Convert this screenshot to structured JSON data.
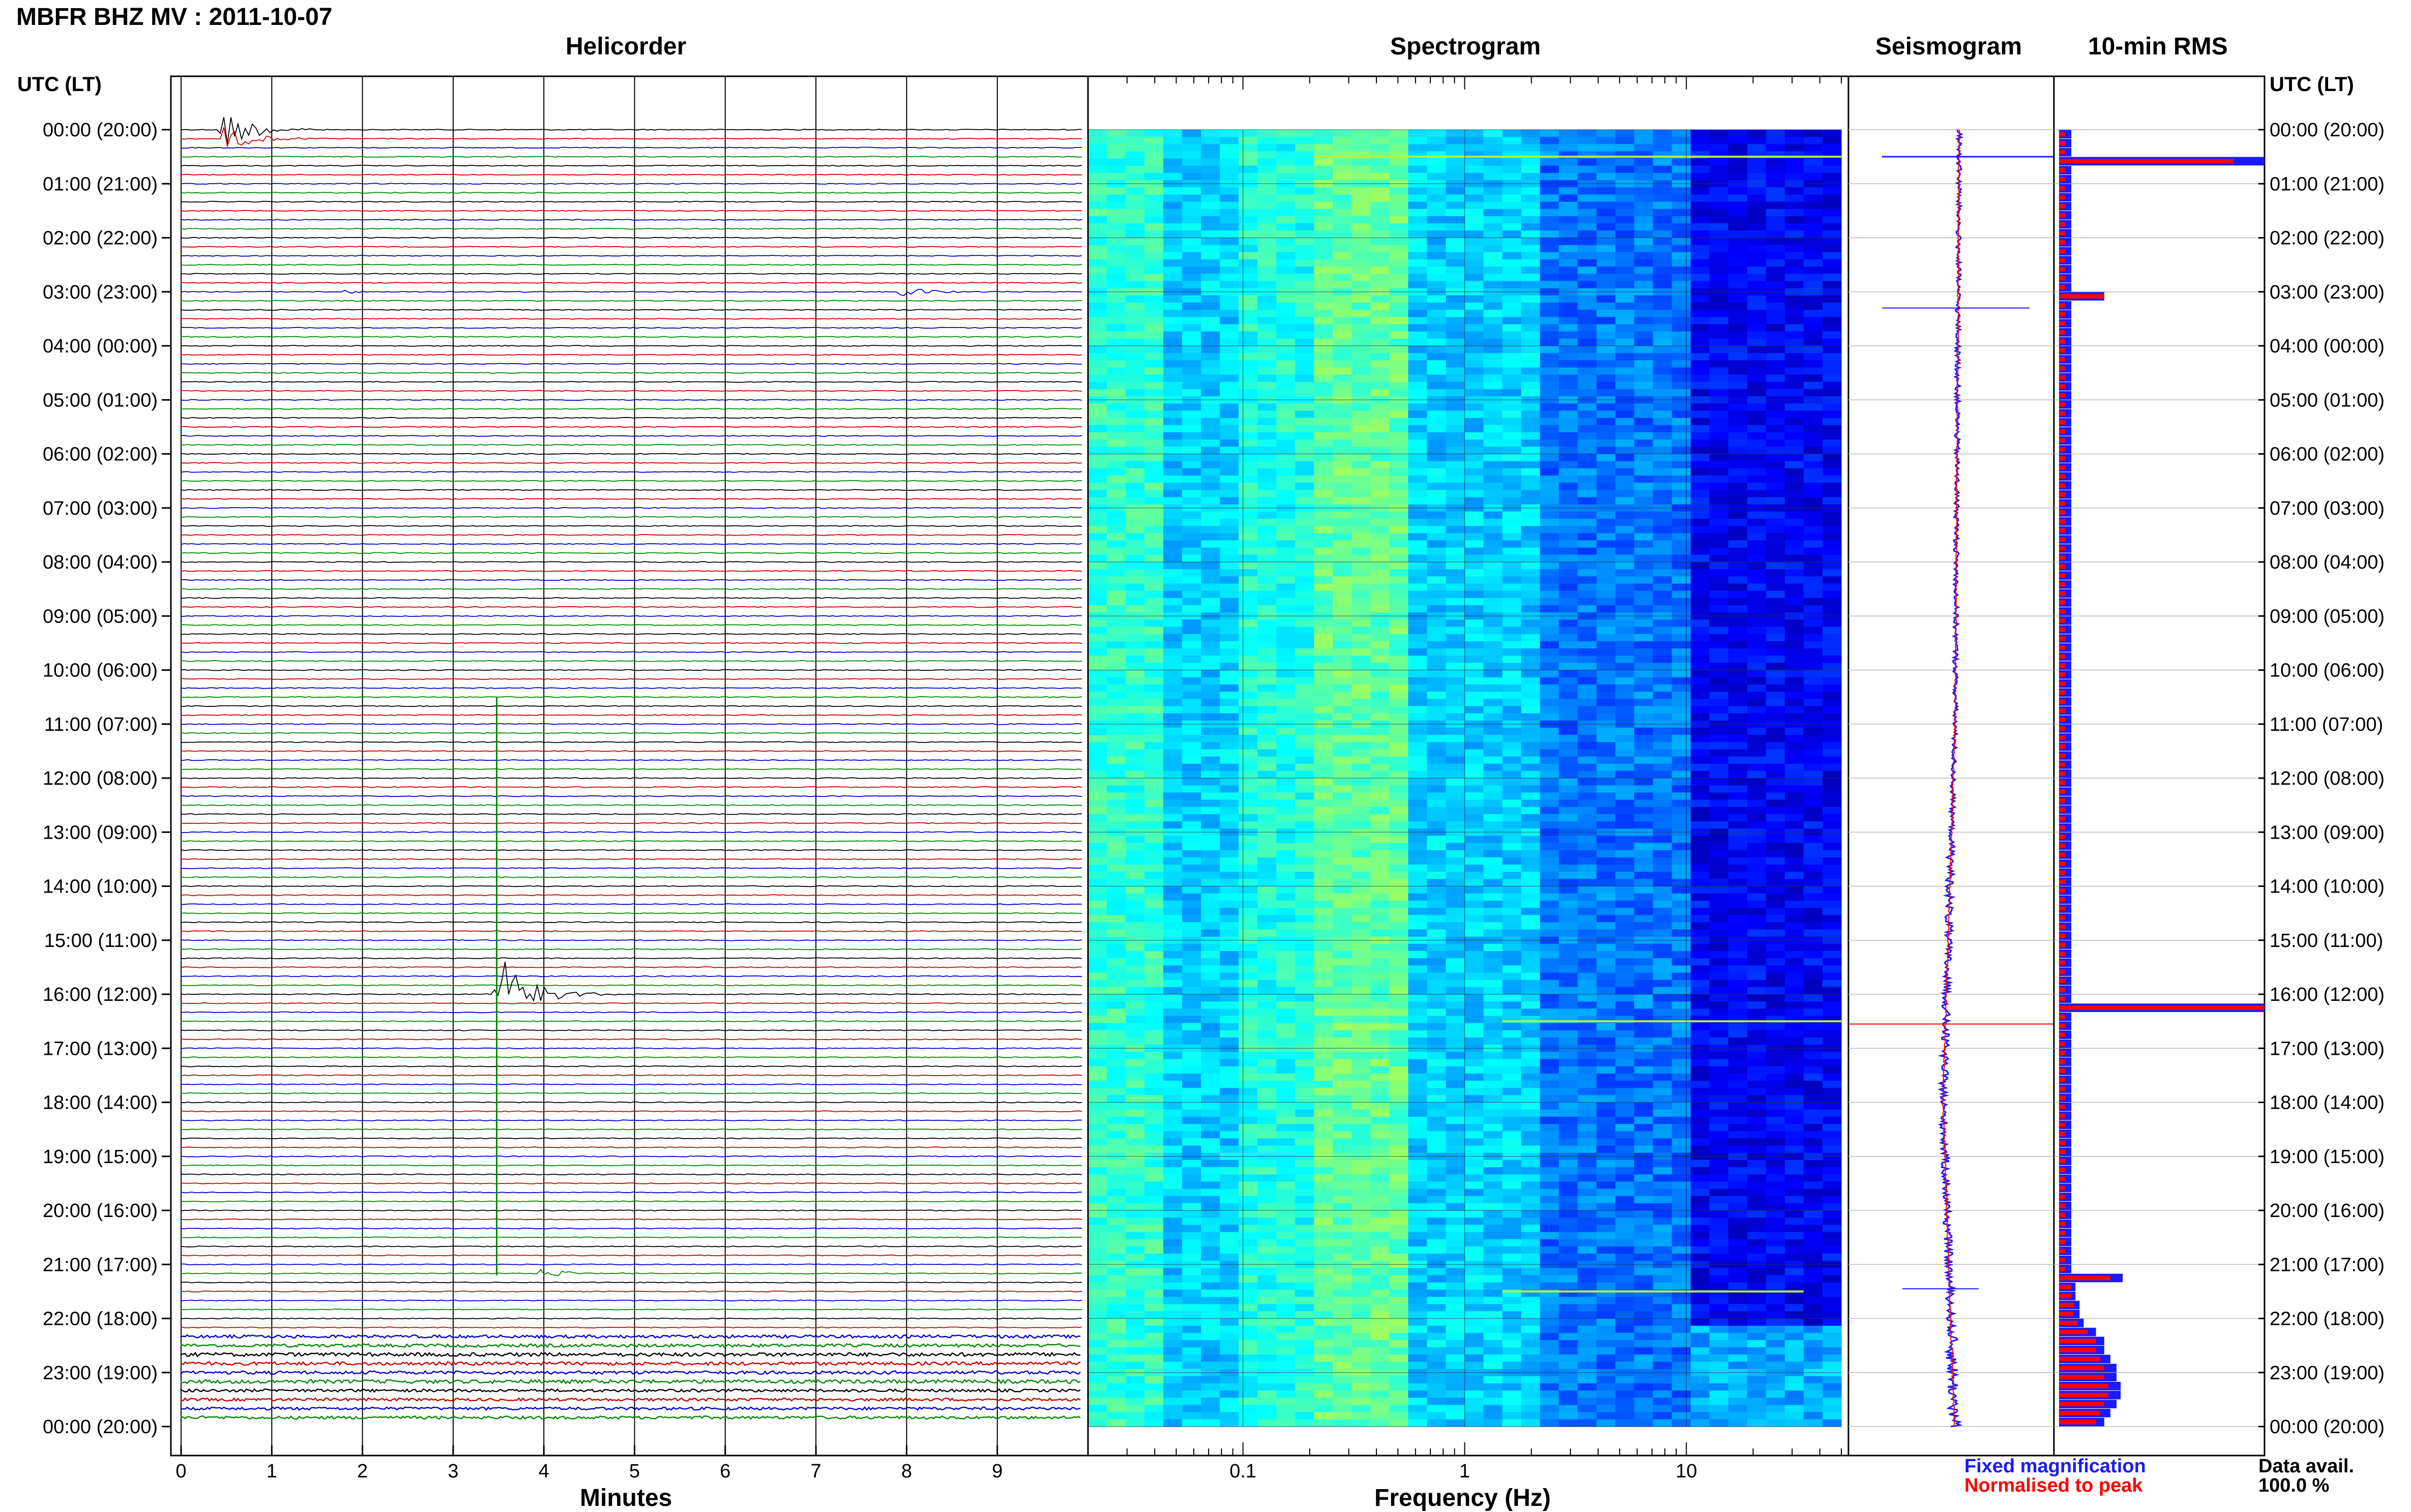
{
  "title": "MBFR BHZ MV : 2011-10-07",
  "panels": {
    "helicorder": "Helicorder",
    "spectrogram": "Spectrogram",
    "seismogram": "Seismogram",
    "rms": "10-min RMS"
  },
  "time_axis_label": "UTC (LT)",
  "legend": {
    "fixed": "Fixed magnification",
    "normalised": "Normalised to peak"
  },
  "data_avail": {
    "label": "Data avail.",
    "value": "100.0 %"
  },
  "colors": {
    "trace_cycle": [
      "#000000",
      "#cc0000",
      "#0000cc",
      "#008800"
    ],
    "fixed": "#1a1aff",
    "normalised": "#ff0000"
  },
  "chart_data": [
    {
      "type": "line",
      "title": "Helicorder",
      "xlabel": "Minutes",
      "x_ticks": [
        "0",
        "1",
        "2",
        "3",
        "4",
        "5",
        "6",
        "7",
        "8",
        "9"
      ],
      "xlim": [
        0,
        10
      ],
      "rows_per_hour": 6,
      "hours": 24,
      "y_tick_labels": [
        "00:00 (20:00)",
        "01:00 (21:00)",
        "02:00 (22:00)",
        "03:00 (23:00)",
        "04:00 (00:00)",
        "05:00 (01:00)",
        "06:00 (02:00)",
        "07:00 (03:00)",
        "08:00 (04:00)",
        "09:00 (05:00)",
        "10:00 (06:00)",
        "11:00 (07:00)",
        "12:00 (08:00)",
        "13:00 (09:00)",
        "14:00 (10:00)",
        "15:00 (11:00)",
        "16:00 (12:00)",
        "17:00 (13:00)",
        "18:00 (14:00)",
        "19:00 (15:00)",
        "20:00 (16:00)",
        "21:00 (17:00)",
        "22:00 (18:00)",
        "23:00 (19:00)",
        "00:00 (20:00)"
      ],
      "events": [
        {
          "row": 0,
          "minute": 0.4,
          "amplitude": 10
        },
        {
          "row": 1,
          "minute": 0.45,
          "amplitude": 5
        },
        {
          "row": 18,
          "minute": 1.8,
          "amplitude": 0.8
        },
        {
          "row": 18,
          "minute": 7.9,
          "amplitude": 2.5
        },
        {
          "row": 96,
          "minute": 3.45,
          "amplitude": 20
        },
        {
          "row": 127,
          "minute": 3.95,
          "amplitude": 2.2
        }
      ],
      "noisy_from_row": 134
    },
    {
      "type": "heatmap",
      "title": "Spectrogram",
      "xlabel": "Frequency (Hz)",
      "x_scale": "log",
      "x_ticks": [
        "0.1",
        "1",
        "10"
      ],
      "xlim": [
        0.02,
        50
      ],
      "colormap": "jet"
    },
    {
      "type": "line",
      "title": "Seismogram",
      "series": [
        {
          "name": "Fixed magnification",
          "color": "#1a1aff"
        },
        {
          "name": "Normalised to peak",
          "color": "#ff0000"
        }
      ]
    },
    {
      "type": "bar",
      "title": "10-min RMS",
      "orientation": "horizontal",
      "n_bins": 144,
      "series": [
        {
          "name": "Fixed magnification",
          "color": "#1a1aff",
          "values": [
            0.06,
            0.06,
            0.06,
            1.0,
            0.06,
            0.06,
            0.06,
            0.06,
            0.06,
            0.06,
            0.06,
            0.06,
            0.06,
            0.06,
            0.06,
            0.06,
            0.06,
            0.06,
            0.22,
            0.06,
            0.06,
            0.06,
            0.06,
            0.06,
            0.06,
            0.06,
            0.06,
            0.06,
            0.06,
            0.06,
            0.06,
            0.06,
            0.06,
            0.06,
            0.06,
            0.06,
            0.06,
            0.06,
            0.06,
            0.06,
            0.06,
            0.06,
            0.06,
            0.06,
            0.06,
            0.06,
            0.06,
            0.06,
            0.06,
            0.06,
            0.06,
            0.06,
            0.06,
            0.06,
            0.06,
            0.06,
            0.06,
            0.06,
            0.06,
            0.06,
            0.06,
            0.06,
            0.06,
            0.06,
            0.06,
            0.06,
            0.06,
            0.06,
            0.06,
            0.06,
            0.06,
            0.06,
            0.06,
            0.06,
            0.06,
            0.06,
            0.06,
            0.06,
            0.06,
            0.06,
            0.06,
            0.06,
            0.06,
            0.06,
            0.06,
            0.06,
            0.06,
            0.06,
            0.06,
            0.06,
            0.06,
            0.06,
            0.06,
            0.06,
            0.06,
            0.06,
            0.06,
            1.0,
            0.06,
            0.06,
            0.06,
            0.06,
            0.06,
            0.06,
            0.06,
            0.06,
            0.06,
            0.06,
            0.06,
            0.06,
            0.06,
            0.06,
            0.06,
            0.06,
            0.06,
            0.06,
            0.06,
            0.06,
            0.06,
            0.06,
            0.06,
            0.06,
            0.06,
            0.06,
            0.06,
            0.06,
            0.06,
            0.31,
            0.08,
            0.08,
            0.1,
            0.1,
            0.12,
            0.18,
            0.22,
            0.22,
            0.25,
            0.28,
            0.28,
            0.3,
            0.3,
            0.28,
            0.25,
            0.22,
            0.18,
            0.15
          ]
        },
        {
          "name": "Normalised to peak",
          "color": "#ff0000",
          "values": [
            0.03,
            0.03,
            0.03,
            0.85,
            0.03,
            0.03,
            0.03,
            0.03,
            0.03,
            0.03,
            0.03,
            0.03,
            0.03,
            0.03,
            0.03,
            0.03,
            0.03,
            0.03,
            0.22,
            0.03,
            0.03,
            0.03,
            0.03,
            0.03,
            0.03,
            0.03,
            0.03,
            0.03,
            0.03,
            0.03,
            0.03,
            0.03,
            0.03,
            0.03,
            0.03,
            0.03,
            0.03,
            0.03,
            0.03,
            0.03,
            0.03,
            0.03,
            0.03,
            0.03,
            0.03,
            0.03,
            0.03,
            0.03,
            0.03,
            0.03,
            0.03,
            0.03,
            0.03,
            0.03,
            0.03,
            0.03,
            0.03,
            0.03,
            0.03,
            0.03,
            0.03,
            0.03,
            0.03,
            0.03,
            0.03,
            0.03,
            0.03,
            0.03,
            0.03,
            0.03,
            0.03,
            0.03,
            0.03,
            0.03,
            0.03,
            0.03,
            0.03,
            0.03,
            0.03,
            0.03,
            0.03,
            0.03,
            0.03,
            0.03,
            0.03,
            0.03,
            0.03,
            0.03,
            0.03,
            0.03,
            0.03,
            0.03,
            0.03,
            0.03,
            0.03,
            0.03,
            0.03,
            1.0,
            0.03,
            0.03,
            0.03,
            0.03,
            0.03,
            0.03,
            0.03,
            0.03,
            0.03,
            0.03,
            0.03,
            0.03,
            0.03,
            0.03,
            0.03,
            0.03,
            0.03,
            0.03,
            0.03,
            0.03,
            0.03,
            0.03,
            0.03,
            0.03,
            0.03,
            0.03,
            0.03,
            0.03,
            0.03,
            0.25,
            0.06,
            0.06,
            0.07,
            0.07,
            0.09,
            0.14,
            0.18,
            0.18,
            0.2,
            0.22,
            0.22,
            0.24,
            0.24,
            0.22,
            0.2,
            0.18,
            0.14,
            0.11
          ]
        }
      ]
    }
  ]
}
